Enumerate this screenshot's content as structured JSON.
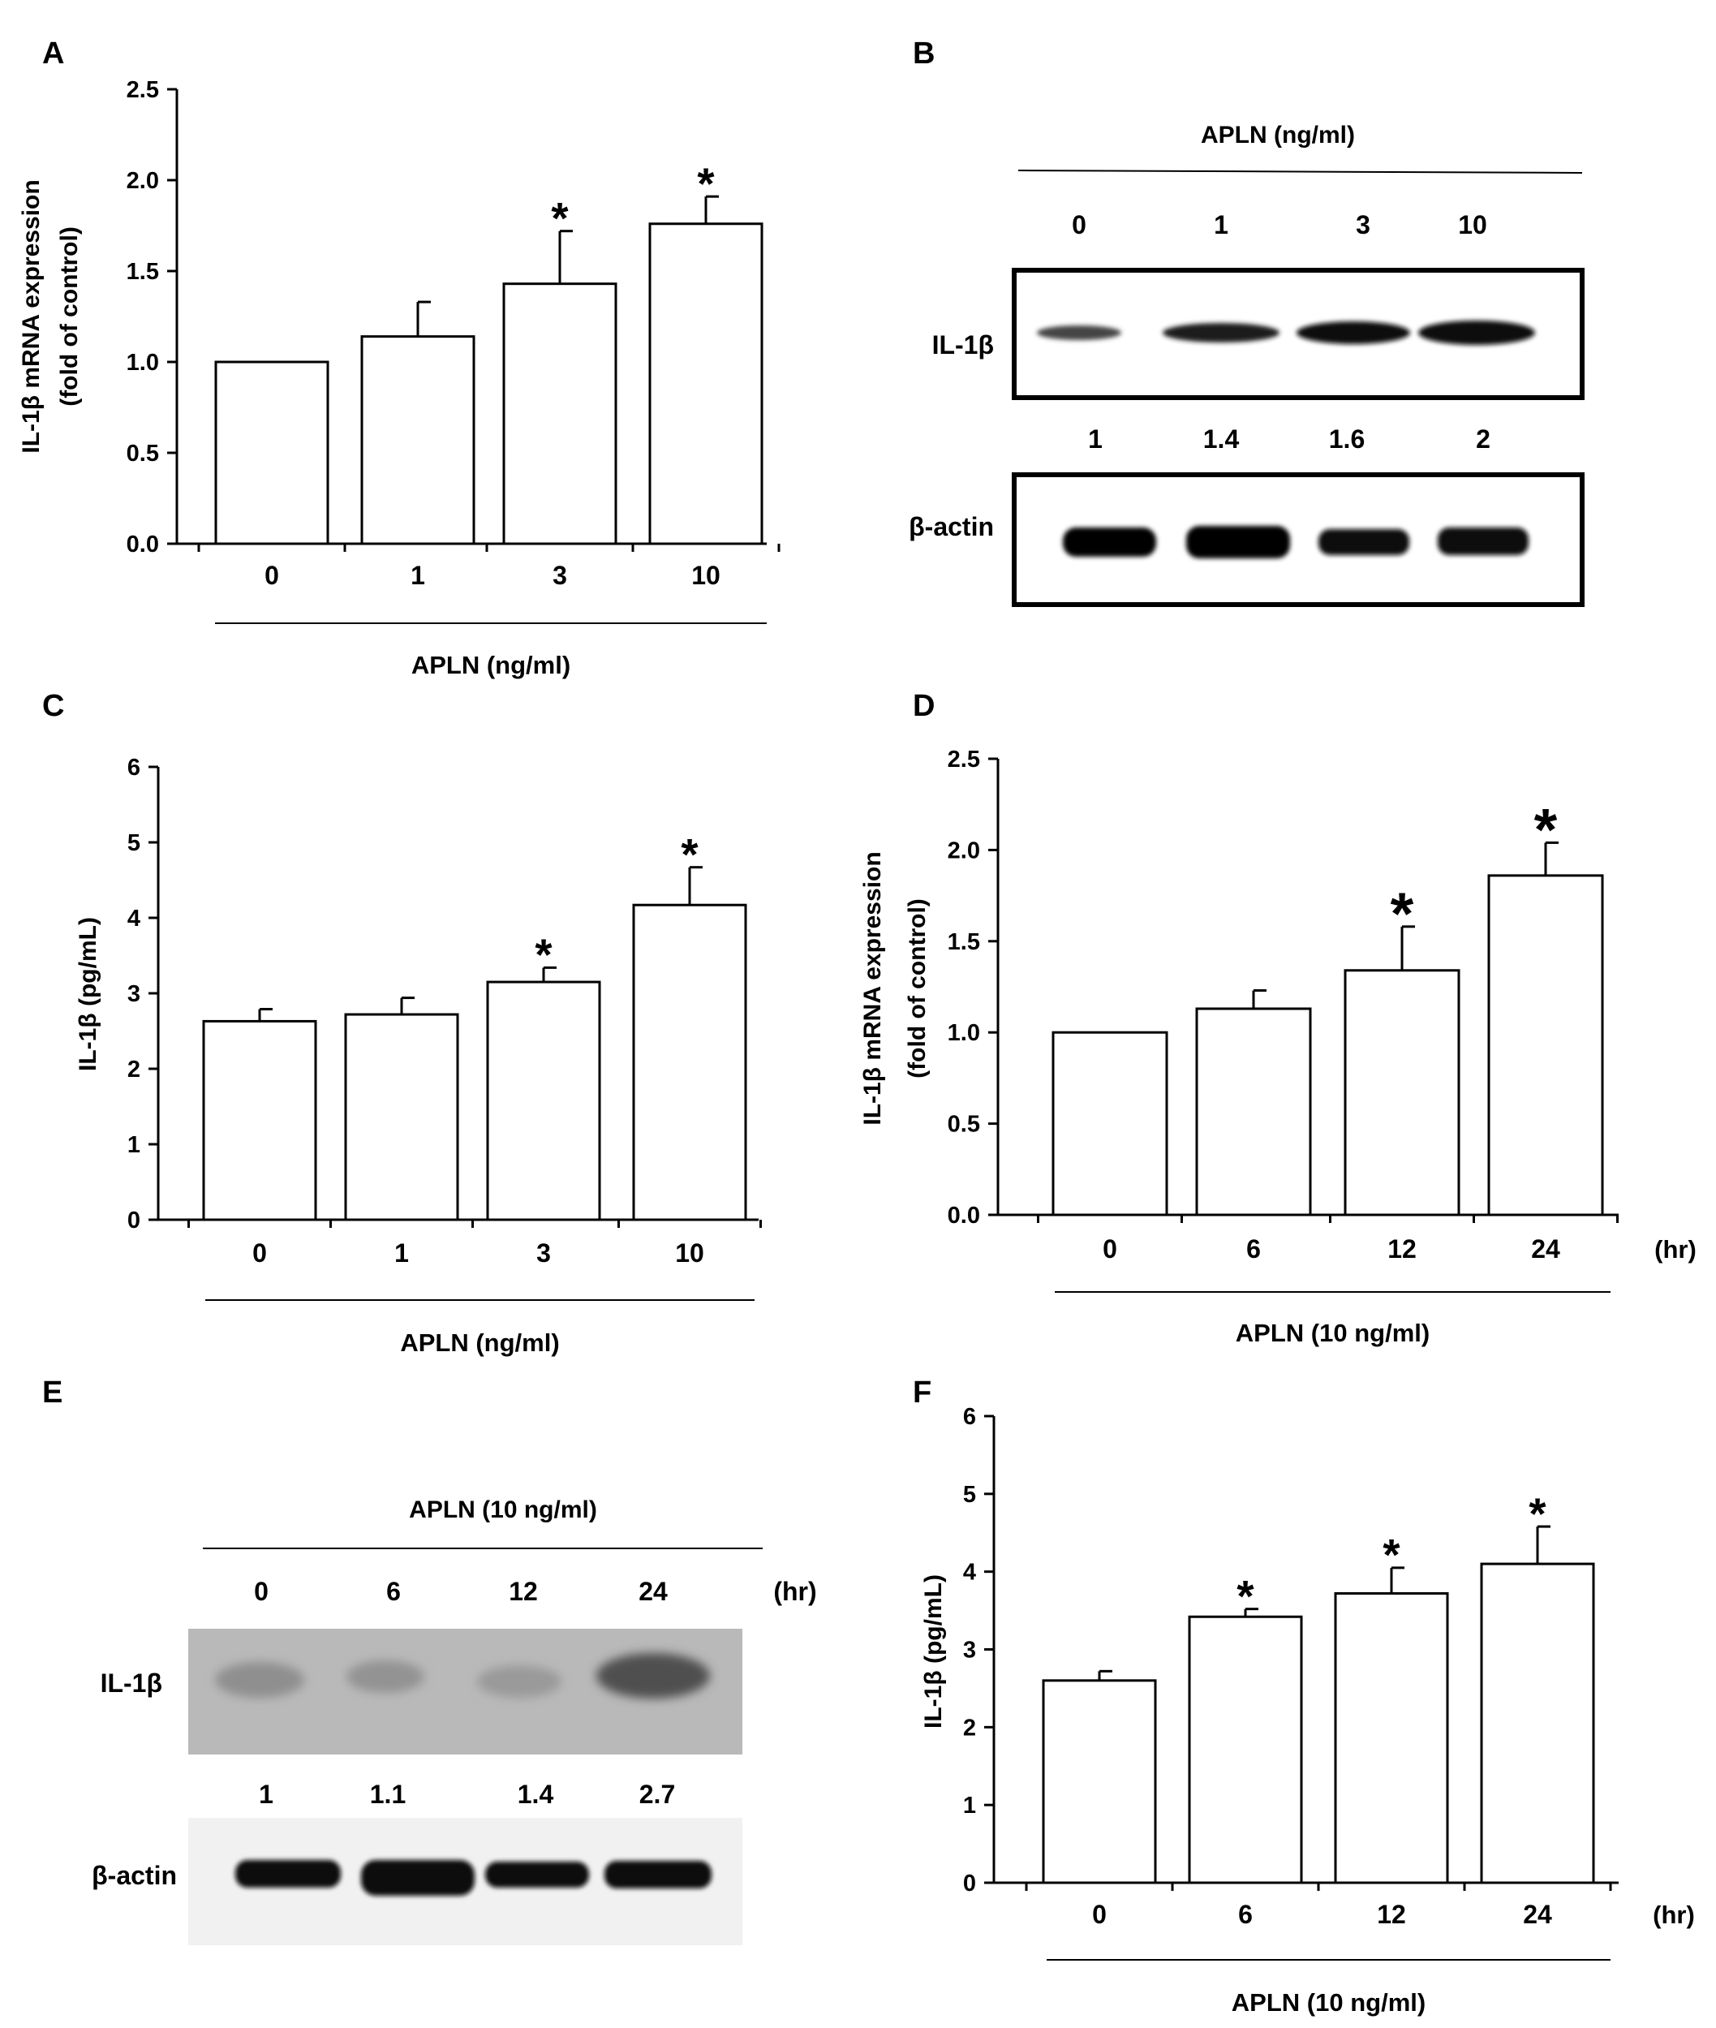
{
  "panels": {
    "A": {
      "letter": "A"
    },
    "B": {
      "letter": "B",
      "header": "APLN (ng/ml)",
      "lanes": [
        "0",
        "1",
        "3",
        "10"
      ],
      "band_label": "IL-1β",
      "values": [
        "1",
        "1.4",
        "1.6",
        "2"
      ],
      "control_label": "β-actin"
    },
    "C": {
      "letter": "C"
    },
    "D": {
      "letter": "D"
    },
    "E": {
      "letter": "E",
      "header": "APLN (10 ng/ml)",
      "lanes": [
        "0",
        "6",
        "12",
        "24"
      ],
      "unit": "(hr)",
      "band_label": "IL-1β",
      "values": [
        "1",
        "1.1",
        "1.4",
        "2.7"
      ],
      "control_label": "β-actin"
    },
    "F": {
      "letter": "F"
    }
  },
  "chart_data": [
    {
      "id": "A",
      "type": "bar",
      "categories": [
        "0",
        "1",
        "3",
        "10"
      ],
      "values": [
        1.0,
        1.14,
        1.43,
        1.76
      ],
      "errors": [
        0,
        0.19,
        0.29,
        0.15
      ],
      "significance": [
        "",
        "",
        "*",
        "*"
      ],
      "ylabel": "IL-1β mRNA expression",
      "ylabel2": "(fold of control)",
      "xlabel": "APLN (ng/ml)",
      "xunit": "",
      "ylim": [
        0,
        2.5
      ],
      "yticks": [
        "0.0",
        "0.5",
        "1.0",
        "1.5",
        "2.0",
        "2.5"
      ]
    },
    {
      "id": "C",
      "type": "bar",
      "categories": [
        "0",
        "1",
        "3",
        "10"
      ],
      "values": [
        2.63,
        2.72,
        3.15,
        4.17
      ],
      "errors": [
        0.16,
        0.22,
        0.19,
        0.5
      ],
      "significance": [
        "",
        "",
        "*",
        "*"
      ],
      "ylabel": "IL-1β (pg/mL)",
      "ylabel2": "",
      "xlabel": "APLN (ng/ml)",
      "xunit": "",
      "ylim": [
        0,
        6
      ],
      "yticks": [
        "0",
        "1",
        "2",
        "3",
        "4",
        "5",
        "6"
      ]
    },
    {
      "id": "D",
      "type": "bar",
      "categories": [
        "0",
        "6",
        "12",
        "24"
      ],
      "values": [
        1.0,
        1.13,
        1.34,
        1.86
      ],
      "errors": [
        0,
        0.1,
        0.24,
        0.18
      ],
      "significance": [
        "",
        "",
        "*",
        "*"
      ],
      "ylabel": "IL-1β mRNA expression",
      "ylabel2": "(fold of control)",
      "xlabel": "APLN (10 ng/ml)",
      "xunit": "(hr)",
      "ylim": [
        0,
        2.5
      ],
      "yticks": [
        "0.0",
        "0.5",
        "1.0",
        "1.5",
        "2.0",
        "2.5"
      ]
    },
    {
      "id": "F",
      "type": "bar",
      "categories": [
        "0",
        "6",
        "12",
        "24"
      ],
      "values": [
        2.6,
        3.42,
        3.72,
        4.1
      ],
      "errors": [
        0.12,
        0.1,
        0.33,
        0.48
      ],
      "significance": [
        "",
        "*",
        "*",
        "*"
      ],
      "ylabel": "IL-1β (pg/mL)",
      "ylabel2": "",
      "xlabel": "APLN (10 ng/ml)",
      "xunit": "(hr)",
      "ylim": [
        0,
        6
      ],
      "yticks": [
        "0",
        "1",
        "2",
        "3",
        "4",
        "5",
        "6"
      ]
    }
  ]
}
